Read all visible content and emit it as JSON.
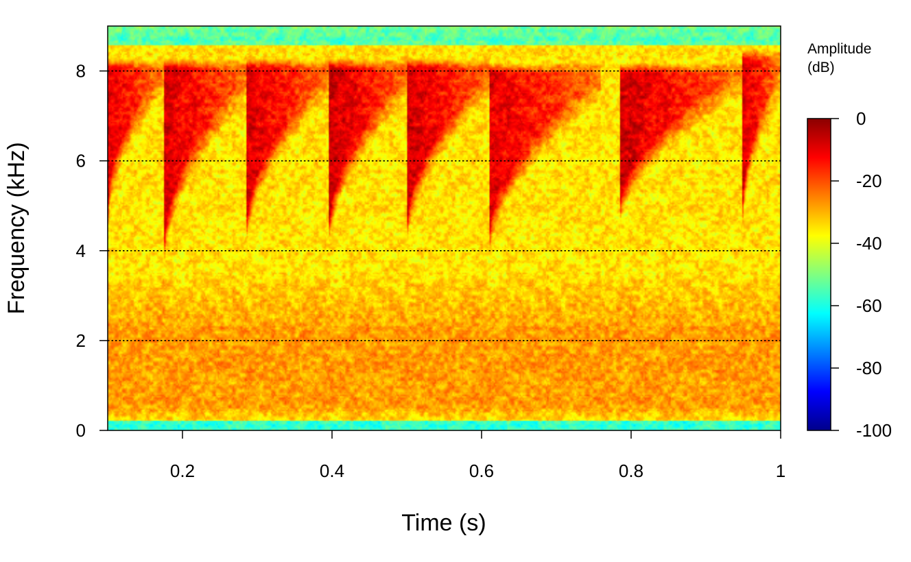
{
  "chart_data": {
    "type": "heatmap",
    "subtype": "spectrogram",
    "xlabel": "Time (s)",
    "ylabel": "Frequency (kHz)",
    "xlim": [
      0.1,
      1.0
    ],
    "ylim": [
      0,
      9
    ],
    "x_ticks": [
      0.2,
      0.4,
      0.6,
      0.8,
      1.0
    ],
    "x_tick_labels": [
      "0.2",
      "0.4",
      "0.6",
      "0.8",
      "1"
    ],
    "y_ticks": [
      0,
      2,
      4,
      6,
      8
    ],
    "y_tick_labels": [
      "0",
      "2",
      "4",
      "6",
      "8"
    ],
    "reference_lines_khz": [
      2,
      4,
      6,
      8
    ],
    "reference_line_style": "dotted",
    "colorbar": {
      "title_line1": "Amplitude",
      "title_line2": "(dB)",
      "range": [
        -100,
        0
      ],
      "ticks": [
        0,
        -20,
        -40,
        -60,
        -80,
        -100
      ],
      "tick_labels": [
        "0",
        "-20",
        "-40",
        "-60",
        "-80",
        "-100"
      ],
      "colors": [
        "#00008B",
        "#0000FF",
        "#0080FF",
        "#00FFFF",
        "#80FF80",
        "#FFFF00",
        "#FF8000",
        "#FF0000",
        "#8B0000"
      ]
    },
    "background_db": -35,
    "low_band": {
      "freq_range_khz": [
        0.2,
        3.5
      ],
      "amplitude_db": -28
    },
    "edge_bands": [
      {
        "freq_range_khz": [
          0,
          0.2
        ],
        "amplitude_db": -58
      },
      {
        "freq_range_khz": [
          8.6,
          9
        ],
        "amplitude_db": -55
      }
    ],
    "calls": [
      {
        "onset_s": 0.1,
        "end_s": 0.175,
        "low_khz": 4.6,
        "high_khz": 8.3,
        "peak_db": -10
      },
      {
        "onset_s": 0.175,
        "end_s": 0.285,
        "low_khz": 3.6,
        "high_khz": 8.3,
        "peak_db": -8
      },
      {
        "onset_s": 0.285,
        "end_s": 0.395,
        "low_khz": 4.0,
        "high_khz": 8.3,
        "peak_db": -8
      },
      {
        "onset_s": 0.395,
        "end_s": 0.5,
        "low_khz": 3.9,
        "high_khz": 8.3,
        "peak_db": -6
      },
      {
        "onset_s": 0.5,
        "end_s": 0.61,
        "low_khz": 4.0,
        "high_khz": 8.3,
        "peak_db": -7
      },
      {
        "onset_s": 0.61,
        "end_s": 0.76,
        "low_khz": 3.7,
        "high_khz": 8.2,
        "peak_db": -9
      },
      {
        "onset_s": 0.785,
        "end_s": 0.95,
        "low_khz": 4.4,
        "high_khz": 8.2,
        "peak_db": -7
      },
      {
        "onset_s": 0.95,
        "end_s": 1.0,
        "low_khz": 4.4,
        "high_khz": 8.5,
        "peak_db": -9
      }
    ]
  }
}
